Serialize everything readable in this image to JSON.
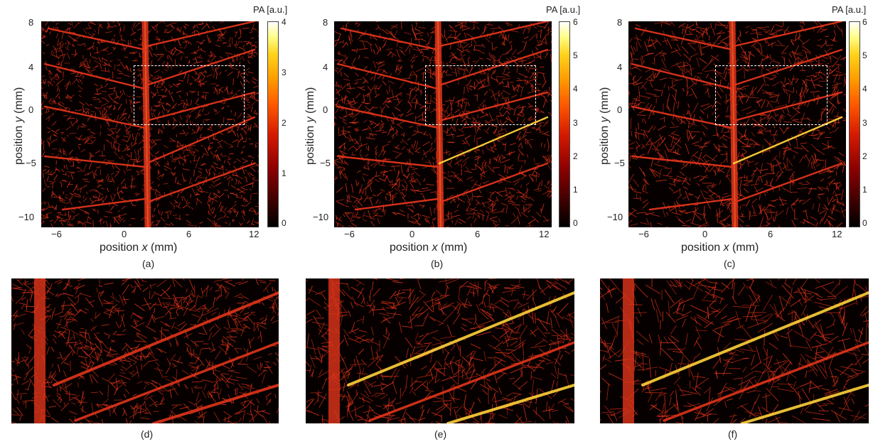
{
  "panels": [
    {
      "caption": "(a)",
      "colorbar": {
        "title": "PA [a.u.]",
        "ticks": [
          "4",
          "3",
          "2",
          "1",
          "0"
        ]
      },
      "y_ticks": [
        "8",
        "4",
        "0",
        "−5",
        "−10"
      ],
      "x_ticks": [
        "−6",
        "0",
        "6",
        "12"
      ],
      "ylabel_prefix": "position ",
      "ylabel_var": "y",
      "ylabel_unit": " (mm)",
      "xlabel_prefix": "position ",
      "xlabel_var": "x",
      "xlabel_unit": " (mm)"
    },
    {
      "caption": "(b)",
      "colorbar": {
        "title": "PA [a.u.]",
        "ticks": [
          "6",
          "5",
          "4",
          "3",
          "2",
          "1",
          "0"
        ]
      },
      "y_ticks": [
        "8",
        "4",
        "0",
        "−5",
        "−10"
      ],
      "x_ticks": [
        "−6",
        "0",
        "6",
        "12"
      ],
      "ylabel_prefix": "position ",
      "ylabel_var": "y",
      "ylabel_unit": " (mm)",
      "xlabel_prefix": "position ",
      "xlabel_var": "x",
      "xlabel_unit": " (mm)"
    },
    {
      "caption": "(c)",
      "colorbar": {
        "title": "PA [a.u.]",
        "ticks": [
          "6",
          "5",
          "4",
          "3",
          "2",
          "1",
          "0"
        ]
      },
      "y_ticks": [
        "8",
        "4",
        "0",
        "−5",
        "−10"
      ],
      "x_ticks": [
        "−6",
        "0",
        "6",
        "12"
      ],
      "ylabel_prefix": "position ",
      "ylabel_var": "y",
      "ylabel_unit": " (mm)",
      "xlabel_prefix": "position ",
      "xlabel_var": "x",
      "xlabel_unit": " (mm)"
    }
  ],
  "zooms": [
    {
      "caption": "(d)"
    },
    {
      "caption": "(e)"
    },
    {
      "caption": "(f)"
    }
  ],
  "colors": {
    "vessel": "#e0341a",
    "bright": "#ffd23a",
    "background": "#070000",
    "roi": "#ffffff"
  }
}
